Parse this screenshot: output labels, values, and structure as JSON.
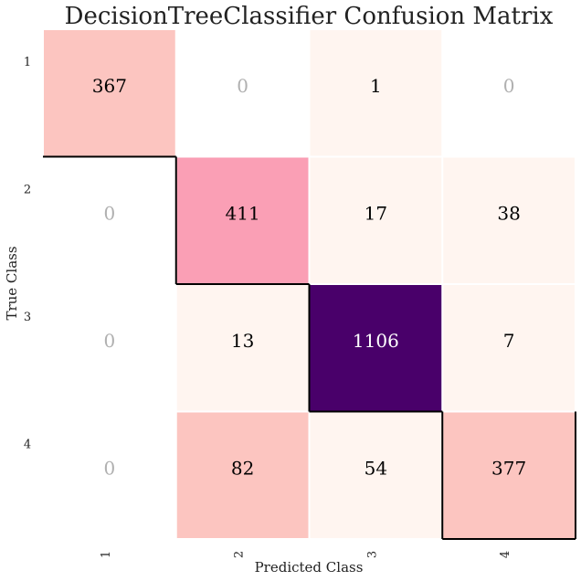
{
  "chart_data": {
    "type": "heatmap",
    "title": "DecisionTreeClassifier Confusion Matrix",
    "xlabel": "Predicted Class",
    "ylabel": "True Class",
    "x_categories": [
      "1",
      "2",
      "3",
      "4"
    ],
    "y_categories": [
      "1",
      "2",
      "3",
      "4"
    ],
    "values": [
      [
        367,
        0,
        1,
        0
      ],
      [
        0,
        411,
        17,
        38
      ],
      [
        0,
        13,
        1106,
        7
      ],
      [
        0,
        82,
        54,
        377
      ]
    ],
    "colors": {
      "zero_cell": "#ffffff",
      "low": "#fff5f0",
      "mid_low": "#fcc5c0",
      "mid": "#fa9fb5",
      "high": "#49006a",
      "zero_text": "#b0b0b0",
      "text_dark": "#000000",
      "text_light": "#ffffff",
      "diagonal_outline": "#000000"
    }
  }
}
